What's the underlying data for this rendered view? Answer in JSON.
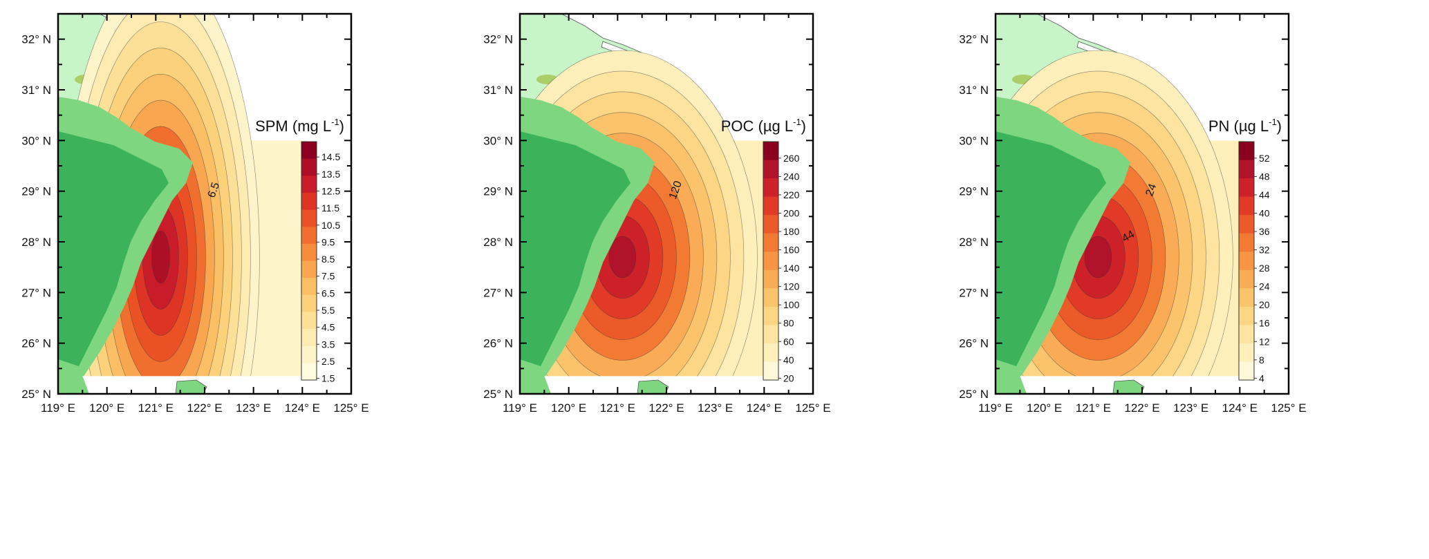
{
  "figure": {
    "x_ticks": [
      "119° E",
      "120° E",
      "121° E",
      "122° E",
      "123° E",
      "124° E",
      "125° E"
    ],
    "y_ticks": [
      "32° N",
      "31° N",
      "30° N",
      "29° N",
      "28° N",
      "27° N",
      "26° N",
      "25° N"
    ]
  },
  "colors": {
    "land_low": "#c8f5c8",
    "land_mid": "#7ed680",
    "land_high": "#3cb25a",
    "land_peak": "#9fbe3c",
    "frame": "#000000",
    "contour": "#333333"
  },
  "panels": [
    {
      "id": "spm",
      "title": "SPM (mg L",
      "title_sup": "-1",
      "title_end": ")",
      "contour_label": "6.5",
      "colorbar_ticks": [
        "14.5",
        "13.5",
        "12.5",
        "11.5",
        "10.5",
        "9.5",
        "8.5",
        "7.5",
        "6.5",
        "5.5",
        "4.5",
        "3.5",
        "2.5",
        "1.5"
      ],
      "colorbar_colors": [
        "#8b0021",
        "#ad0f27",
        "#c81c2a",
        "#dd3426",
        "#ea5226",
        "#f16f2e",
        "#f58d3c",
        "#f8a64f",
        "#fabe64",
        "#fbd17c",
        "#fde098",
        "#fdebb1",
        "#fef4c9",
        "#fffbe0"
      ]
    },
    {
      "id": "poc",
      "title": "POC (µg L",
      "title_sup": "-1",
      "title_end": ")",
      "contour_label": "120",
      "colorbar_ticks": [
        "260",
        "240",
        "220",
        "200",
        "180",
        "160",
        "140",
        "120",
        "100",
        "80",
        "60",
        "40",
        "20"
      ],
      "colorbar_colors": [
        "#8b0021",
        "#b1132a",
        "#cd2129",
        "#e13a27",
        "#ed5a2a",
        "#f37a33",
        "#f79543",
        "#f9ac55",
        "#fbc36b",
        "#fcd585",
        "#fde4a0",
        "#feefbb",
        "#fff8d8"
      ]
    },
    {
      "id": "pn",
      "title": "PN (µg L",
      "title_sup": "-1",
      "title_end": ")",
      "contour_label": "24",
      "contour_label_2": "44",
      "colorbar_ticks": [
        "52",
        "48",
        "44",
        "40",
        "36",
        "32",
        "28",
        "24",
        "20",
        "16",
        "12",
        "8",
        "4"
      ],
      "colorbar_colors": [
        "#8b0021",
        "#b1132a",
        "#cd2129",
        "#e13a27",
        "#ed5a2a",
        "#f37a33",
        "#f79543",
        "#f9ac55",
        "#fbc36b",
        "#fcd585",
        "#fde4a0",
        "#feefbb",
        "#fff8d8"
      ]
    }
  ]
}
